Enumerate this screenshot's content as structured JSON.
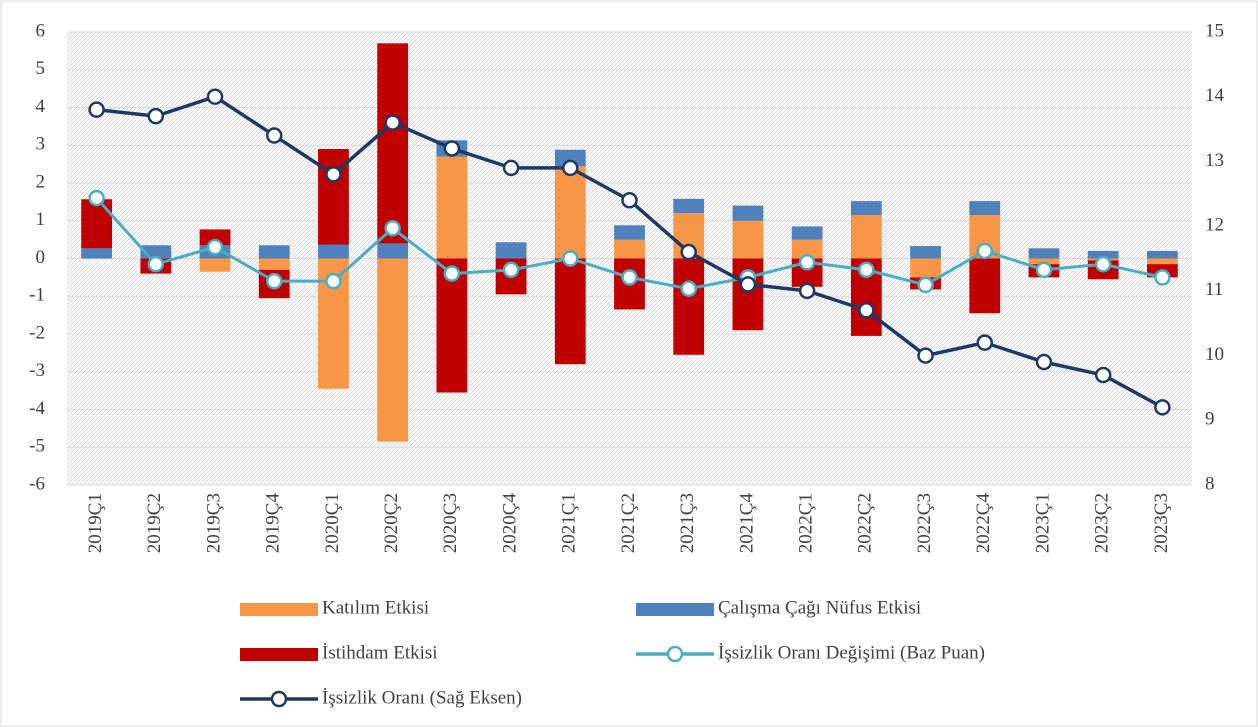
{
  "chart_data": {
    "type": "bar",
    "stacked": true,
    "categories": [
      "2019Ç1",
      "2019Ç2",
      "2019Ç3",
      "2019Ç4",
      "2020Ç1",
      "2020Ç2",
      "2020Ç3",
      "2020Ç4",
      "2021Ç1",
      "2021Ç2",
      "2021Ç3",
      "2021Ç4",
      "2022Ç1",
      "2022Ç2",
      "2022Ç3",
      "2022Ç4",
      "2023Ç1",
      "2023Ç2",
      "2023Ç3"
    ],
    "series": [
      {
        "name": "Katılım Etkisi",
        "type": "bar",
        "color": "#f79646",
        "values": [
          0,
          0,
          -0.35,
          -0.3,
          -3.45,
          -4.85,
          2.7,
          0,
          2.45,
          0.5,
          1.2,
          1.0,
          0.5,
          1.15,
          -0.5,
          1.15,
          -0.15,
          -0.05,
          -0.15
        ]
      },
      {
        "name": "Çalışma Çağı Nüfus Etkisi",
        "type": "bar",
        "color": "#4f81bd",
        "values": [
          0.27,
          0.35,
          0.35,
          0.35,
          0.37,
          0.4,
          0.43,
          0.43,
          0.43,
          0.38,
          0.38,
          0.4,
          0.35,
          0.37,
          0.33,
          0.37,
          0.27,
          0.2,
          0.2
        ]
      },
      {
        "name": "İstihdam Etkisi",
        "type": "bar",
        "color": "#c00000",
        "values": [
          1.3,
          -0.4,
          0.42,
          -0.75,
          2.53,
          5.3,
          -3.55,
          -0.95,
          -2.8,
          -1.35,
          -2.55,
          -1.9,
          -0.75,
          -2.05,
          -0.32,
          -1.45,
          -0.35,
          -0.5,
          -0.35
        ]
      },
      {
        "name": "İşsizlik Oranı Değişimi (Baz Puan)",
        "type": "line",
        "color": "#4bacc6",
        "values": [
          1.6,
          -0.15,
          0.3,
          -0.6,
          -0.6,
          0.8,
          -0.4,
          -0.3,
          0,
          -0.5,
          -0.8,
          -0.5,
          -0.1,
          -0.3,
          -0.7,
          0.2,
          -0.3,
          -0.15,
          -0.5
        ]
      },
      {
        "name": "İşsizlik Oranı (Sağ Eksen)",
        "type": "line",
        "axis": "y2",
        "color": "#1f3864",
        "values": [
          13.8,
          13.7,
          14.0,
          13.4,
          12.8,
          13.6,
          13.2,
          12.9,
          12.9,
          12.4,
          11.6,
          11.1,
          11.0,
          10.7,
          10.0,
          10.2,
          9.9,
          9.7,
          9.2
        ]
      }
    ],
    "ylim": [
      -6,
      6
    ],
    "yticks": [
      -6,
      -5,
      -4,
      -3,
      -2,
      -1,
      0,
      1,
      2,
      3,
      4,
      5,
      6
    ],
    "y2lim": [
      8,
      15
    ],
    "y2ticks": [
      8,
      9,
      10,
      11,
      12,
      13,
      14,
      15
    ],
    "grid": true,
    "legend": "bottom"
  }
}
